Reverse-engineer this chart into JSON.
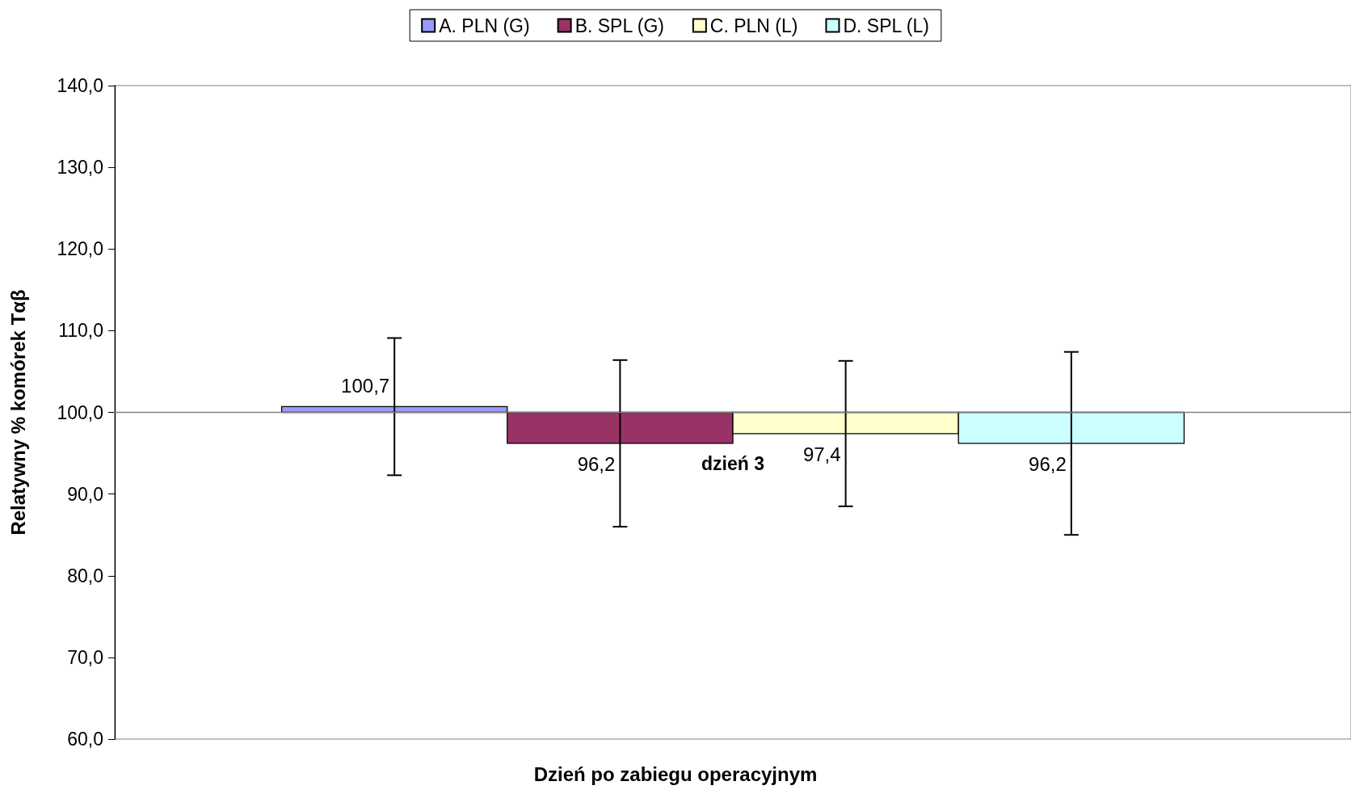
{
  "chart_data": {
    "type": "bar",
    "xlabel": "Dzień po zabiegu operacyjnym",
    "ylabel": "Relatywny % komórek Tαβ",
    "categories": [
      "dzień 3"
    ],
    "series": [
      {
        "name": "A. PLN (G)",
        "color": "#9999ff",
        "base": [
          100
        ],
        "values": [
          0.7
        ],
        "errors": [
          8.4
        ],
        "value_labels": [
          "100,7"
        ]
      },
      {
        "name": "B. SPL (G)",
        "color": "#993366",
        "base": [
          100
        ],
        "values": [
          -3.8
        ],
        "errors": [
          10.2
        ],
        "value_labels": [
          "96,2"
        ]
      },
      {
        "name": "C. PLN (L)",
        "color": "#ffffcc",
        "base": [
          100
        ],
        "values": [
          -2.6
        ],
        "errors": [
          8.9
        ],
        "value_labels": [
          "97,4"
        ]
      },
      {
        "name": "D. SPL (L)",
        "color": "#ccffff",
        "base": [
          100
        ],
        "values": [
          -3.8
        ],
        "errors": [
          11.2
        ],
        "value_labels": [
          "96,2"
        ]
      }
    ],
    "ylim": [
      60,
      140
    ],
    "yticks": [
      {
        "value": 60,
        "label": "60,0"
      },
      {
        "value": 70,
        "label": "70,0"
      },
      {
        "value": 80,
        "label": "80,0"
      },
      {
        "value": 90,
        "label": "90,0"
      },
      {
        "value": 100,
        "label": "100,0"
      },
      {
        "value": 110,
        "label": "110,0"
      },
      {
        "value": 120,
        "label": "120,0"
      },
      {
        "value": 130,
        "label": "130,0"
      },
      {
        "value": 140,
        "label": "140,0"
      }
    ],
    "legend": "top"
  }
}
